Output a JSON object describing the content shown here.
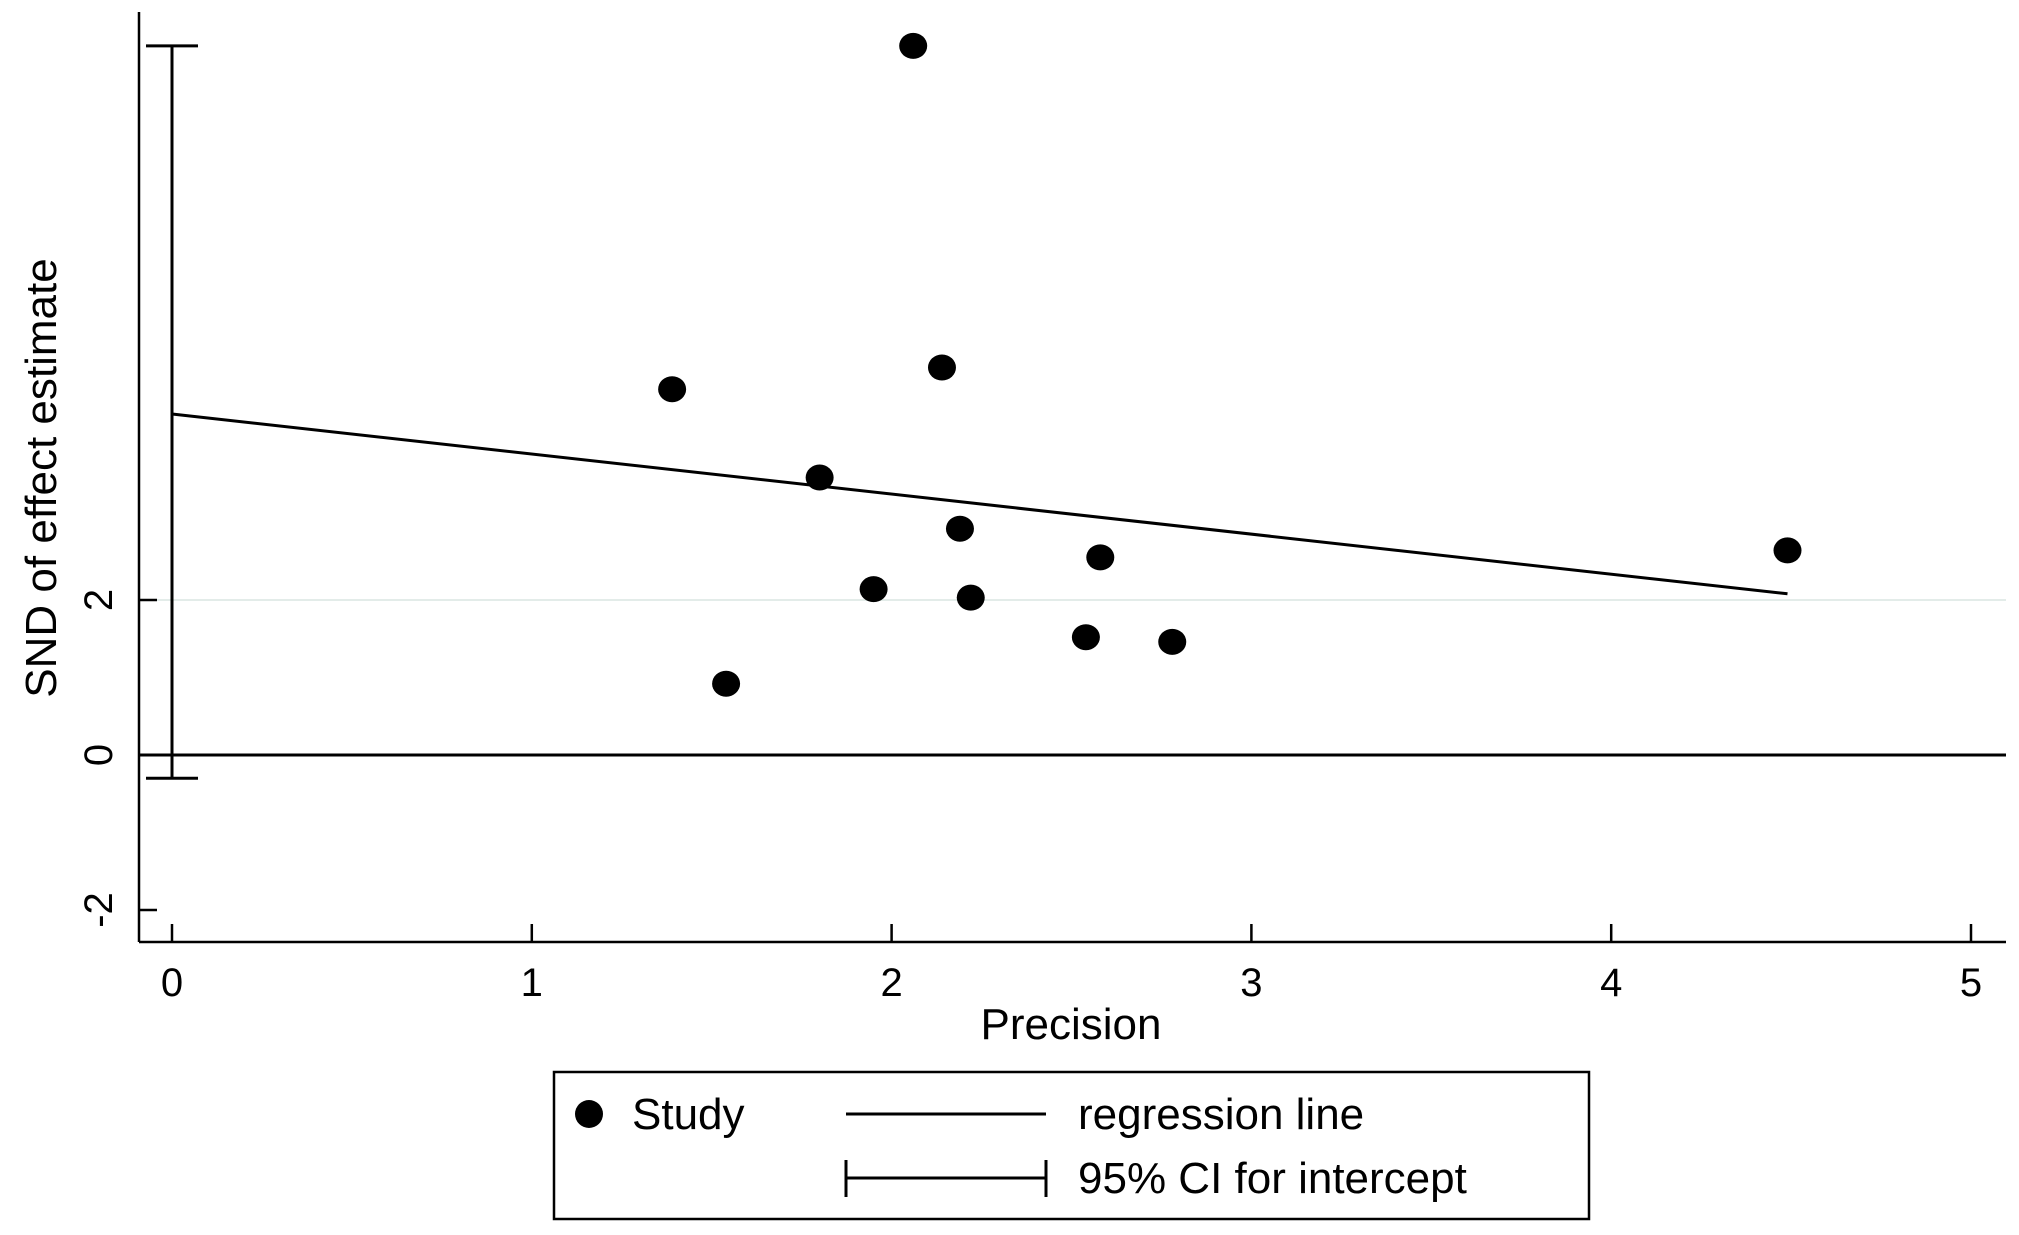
{
  "chart_data": {
    "type": "scatter",
    "xlabel": "Precision",
    "ylabel": "SND of effect estimate",
    "xlim": [
      0,
      5
    ],
    "ylim": [
      -2,
      9
    ],
    "xticks": [
      "0",
      "1",
      "2",
      "3",
      "4",
      "5"
    ],
    "yticks": [
      "-2",
      "0",
      "2"
    ],
    "ytick_values": [
      -2,
      0,
      2
    ],
    "xtick_values": [
      0,
      1,
      2,
      3,
      4,
      5
    ],
    "series": [
      {
        "name": "Study",
        "points": [
          {
            "x": 2.06,
            "y": 9.15
          },
          {
            "x": 1.39,
            "y": 4.72
          },
          {
            "x": 2.14,
            "y": 5.0
          },
          {
            "x": 1.8,
            "y": 3.58
          },
          {
            "x": 2.19,
            "y": 2.92
          },
          {
            "x": 2.58,
            "y": 2.55
          },
          {
            "x": 4.49,
            "y": 2.64
          },
          {
            "x": 1.95,
            "y": 2.14
          },
          {
            "x": 2.22,
            "y": 2.03
          },
          {
            "x": 2.54,
            "y": 1.52
          },
          {
            "x": 2.78,
            "y": 1.46
          },
          {
            "x": 1.54,
            "y": 0.92
          }
        ]
      },
      {
        "name": "regression line",
        "points": [
          {
            "x": 0,
            "y": 4.4
          },
          {
            "x": 4.49,
            "y": 2.08
          }
        ]
      }
    ],
    "ci_intercept": {
      "name": "95% CI for intercept",
      "x": 0,
      "lower": -0.3,
      "upper": 9.15
    },
    "reference_line_y": 0,
    "legend": {
      "placement": "bottom",
      "entries": [
        "Study",
        "regression line",
        "95% CI for intercept"
      ]
    },
    "colors": {
      "points": "#000000",
      "lines": "#000000",
      "gridline": "#e3ece9"
    }
  }
}
